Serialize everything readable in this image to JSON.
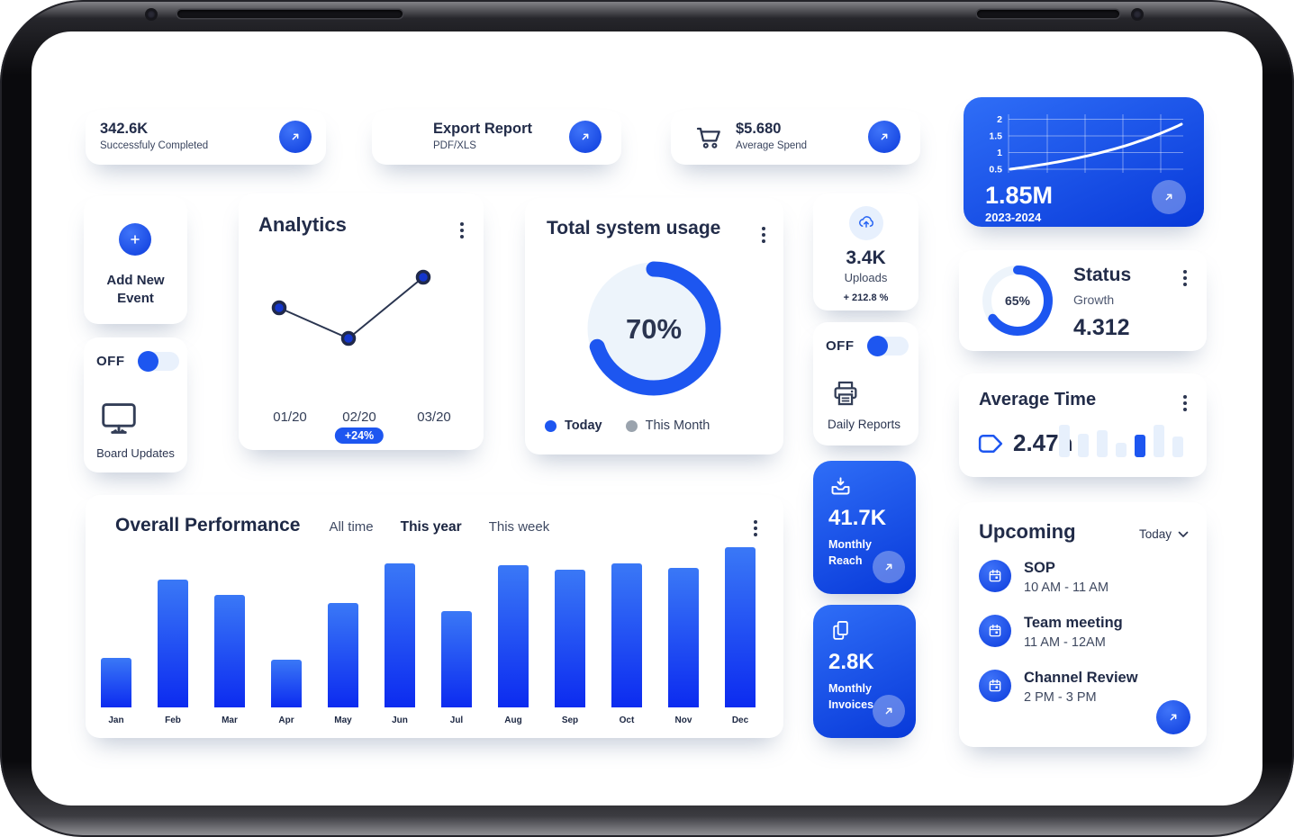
{
  "colors": {
    "primary": "#1d56f0",
    "card_gradient_start": "#2f6ef7",
    "card_gradient_end": "#0839d9",
    "donut_track": "#edf4fb",
    "text_dark": "#2b3550",
    "legend_gray": "#9aa3ad"
  },
  "top_cards": {
    "completed": {
      "value": "342.6K",
      "label": "Successfuly Completed"
    },
    "export": {
      "title": "Export Report",
      "subtitle": "PDF/XLS"
    },
    "spend": {
      "value": "$5.680",
      "label": "Average Spend"
    }
  },
  "revenue_card": {
    "value": "1.85M",
    "period": "2023-2024"
  },
  "add_event_card": {
    "label": "Add New Event"
  },
  "board_card": {
    "toggle_label": "OFF",
    "toggle_state": "off",
    "label": "Board Updates"
  },
  "analytics_card": {
    "title": "Analytics",
    "badge": "+24%"
  },
  "usage_card": {
    "title": "Total system usage",
    "value": "70%",
    "legend_today": "Today",
    "legend_month": "This Month"
  },
  "uploads_card": {
    "value": "3.4K",
    "label": "Uploads",
    "delta": "+ 212.8 %"
  },
  "daily_card": {
    "toggle_label": "OFF",
    "toggle_state": "off",
    "label": "Daily Reports"
  },
  "status_card": {
    "title": "Status",
    "subtitle": "Growth",
    "value": "4.312",
    "percent": "65%"
  },
  "avg_time_card": {
    "title": "Average Time",
    "value": "2.47h"
  },
  "performance_card": {
    "title": "Overall Performance",
    "filters": [
      "All time",
      "This year",
      "This week"
    ],
    "selected_filter": "This year"
  },
  "reach_card": {
    "value": "41.7K",
    "label": "Monthly Reach"
  },
  "invoices_card": {
    "value": "2.8K",
    "label": "Monthly Invoices"
  },
  "upcoming_card": {
    "title": "Upcoming",
    "range": "Today",
    "events": [
      {
        "name": "SOP",
        "time": "10 AM - 11 AM"
      },
      {
        "name": "Team meeting",
        "time": "11 AM - 12AM"
      },
      {
        "name": "Channel Review",
        "time": "2 PM - 3 PM"
      }
    ]
  },
  "chart_data": [
    {
      "id": "revenue-trend",
      "type": "line",
      "title": "1.85M",
      "subtitle": "2023-2024",
      "values": [
        0.5,
        0.55,
        0.62,
        0.72,
        0.85,
        1.02,
        1.22,
        1.5,
        1.85
      ],
      "yticks": [
        2,
        1.5,
        1,
        0.5
      ],
      "ylim": [
        0.3,
        2.1
      ],
      "grid": true,
      "line_color": "#ffffff"
    },
    {
      "id": "analytics-line",
      "type": "line",
      "categories": [
        "01/20",
        "02/20",
        "03/20"
      ],
      "values": [
        60,
        35,
        85
      ],
      "ylim": [
        0,
        100
      ],
      "annotation": {
        "label": "+24%",
        "category": "02/20"
      }
    },
    {
      "id": "total-system-usage",
      "type": "donut",
      "value": 70,
      "label": "70%",
      "legend": [
        "Today",
        "This Month"
      ],
      "legend_position": "bottom"
    },
    {
      "id": "status-growth",
      "type": "donut",
      "value": 65,
      "label": "65%"
    },
    {
      "id": "average-time",
      "type": "bar",
      "values": [
        85,
        62,
        72,
        38,
        60,
        85,
        55
      ],
      "highlight_index": 4,
      "highlight_color": "#1d56f0"
    },
    {
      "id": "overall-performance",
      "type": "bar",
      "categories": [
        "Jan",
        "Feb",
        "Mar",
        "Apr",
        "May",
        "Jun",
        "Jul",
        "Aug",
        "Sep",
        "Oct",
        "Nov",
        "Dec"
      ],
      "values": [
        31,
        80,
        70,
        30,
        65,
        90,
        60,
        89,
        86,
        90,
        87,
        100
      ],
      "ylim": [
        0,
        100
      ],
      "selected_filter": "This year"
    }
  ]
}
